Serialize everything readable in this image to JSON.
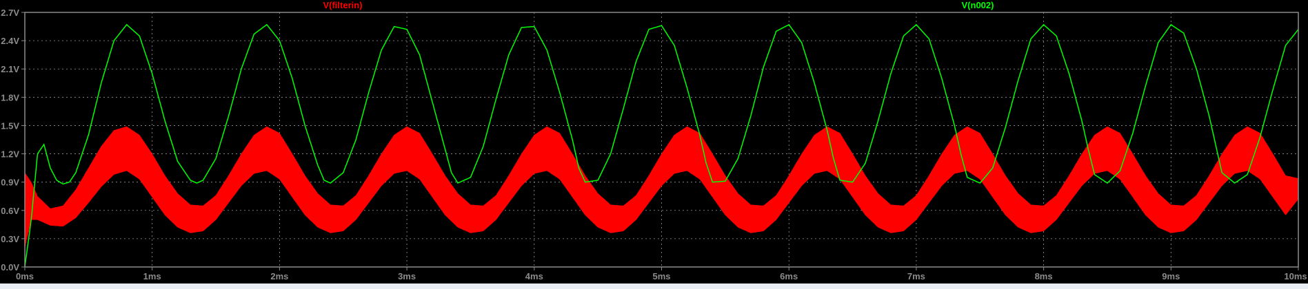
{
  "window": {
    "background": "#000000",
    "axis_color": "#8c8c8c",
    "grid_color": "#9a9a9a",
    "tick_label_color": "#8c8c8c"
  },
  "chart_data": {
    "type": "line",
    "title": "",
    "xlabel": "",
    "ylabel": "",
    "xlim": [
      0,
      10
    ],
    "ylim": [
      0,
      2.7
    ],
    "grid": true,
    "x_ticks": [
      0,
      1,
      2,
      3,
      4,
      5,
      6,
      7,
      8,
      9,
      10
    ],
    "x_tick_labels": [
      "0ms",
      "1ms",
      "2ms",
      "3ms",
      "4ms",
      "5ms",
      "6ms",
      "7ms",
      "8ms",
      "9ms",
      "10ms"
    ],
    "y_ticks": [
      0,
      0.3,
      0.6,
      0.9,
      1.2,
      1.5,
      1.8,
      2.1,
      2.4,
      2.7
    ],
    "y_tick_labels": [
      "0.0V",
      "0.3V",
      "0.6V",
      "0.9V",
      "1.2V",
      "1.5V",
      "1.8V",
      "2.1V",
      "2.4V",
      "2.7V"
    ],
    "series": [
      {
        "name": "V(filterin)",
        "color": "#ff0000",
        "style": "dense-ripple-band",
        "x": [
          0,
          0.05,
          0.1,
          0.2,
          0.3,
          0.4,
          0.5,
          0.6,
          0.7,
          0.8,
          0.9,
          1.0,
          1.1,
          1.2,
          1.3,
          1.4,
          1.5,
          1.6,
          1.7,
          1.8,
          1.9,
          2.0,
          2.1,
          2.2,
          2.3,
          2.4,
          2.5,
          2.6,
          2.7,
          2.8,
          2.9,
          3.0,
          3.1,
          3.2,
          3.3,
          3.4,
          3.5,
          3.6,
          3.7,
          3.8,
          3.9,
          4.0,
          4.1,
          4.2,
          4.3,
          4.4,
          4.5,
          4.6,
          4.7,
          4.8,
          4.9,
          5.0,
          5.1,
          5.2,
          5.3,
          5.4,
          5.5,
          5.6,
          5.7,
          5.8,
          5.9,
          6.0,
          6.1,
          6.2,
          6.3,
          6.4,
          6.5,
          6.6,
          6.7,
          6.8,
          6.9,
          7.0,
          7.1,
          7.2,
          7.3,
          7.4,
          7.5,
          7.6,
          7.7,
          7.8,
          7.9,
          8.0,
          8.1,
          8.2,
          8.3,
          8.4,
          8.5,
          8.6,
          8.7,
          8.8,
          8.9,
          9.0,
          9.1,
          9.2,
          9.3,
          9.4,
          9.5,
          9.6,
          9.7,
          9.8,
          9.9,
          10.0
        ],
        "upper": [
          1.0,
          0.9,
          0.75,
          0.62,
          0.65,
          0.82,
          1.05,
          1.28,
          1.45,
          1.49,
          1.4,
          1.2,
          0.97,
          0.78,
          0.66,
          0.65,
          0.76,
          0.97,
          1.2,
          1.4,
          1.49,
          1.42,
          1.2,
          0.97,
          0.78,
          0.66,
          0.65,
          0.76,
          0.97,
          1.2,
          1.4,
          1.49,
          1.42,
          1.2,
          0.97,
          0.78,
          0.66,
          0.65,
          0.76,
          0.97,
          1.2,
          1.4,
          1.49,
          1.42,
          1.2,
          0.97,
          0.78,
          0.66,
          0.65,
          0.76,
          0.97,
          1.2,
          1.4,
          1.49,
          1.42,
          1.2,
          0.97,
          0.78,
          0.66,
          0.65,
          0.76,
          0.97,
          1.2,
          1.4,
          1.49,
          1.42,
          1.2,
          0.97,
          0.78,
          0.66,
          0.65,
          0.76,
          0.97,
          1.2,
          1.4,
          1.49,
          1.42,
          1.2,
          0.97,
          0.78,
          0.66,
          0.65,
          0.76,
          0.97,
          1.2,
          1.4,
          1.49,
          1.42,
          1.2,
          0.97,
          0.78,
          0.66,
          0.65,
          0.76,
          0.97,
          1.2,
          1.4,
          1.49,
          1.42,
          1.2,
          0.97,
          0.94
        ],
        "lower": [
          0.2,
          0.5,
          0.5,
          0.44,
          0.43,
          0.52,
          0.68,
          0.85,
          0.98,
          1.02,
          0.93,
          0.74,
          0.55,
          0.42,
          0.36,
          0.38,
          0.5,
          0.68,
          0.86,
          0.99,
          1.02,
          0.93,
          0.74,
          0.55,
          0.42,
          0.36,
          0.38,
          0.5,
          0.68,
          0.86,
          0.99,
          1.02,
          0.93,
          0.74,
          0.55,
          0.42,
          0.36,
          0.38,
          0.5,
          0.68,
          0.86,
          0.99,
          1.02,
          0.93,
          0.74,
          0.55,
          0.42,
          0.36,
          0.38,
          0.5,
          0.68,
          0.86,
          0.99,
          1.02,
          0.93,
          0.74,
          0.55,
          0.42,
          0.36,
          0.38,
          0.5,
          0.68,
          0.86,
          0.99,
          1.02,
          0.93,
          0.74,
          0.55,
          0.42,
          0.36,
          0.38,
          0.5,
          0.68,
          0.86,
          0.99,
          1.02,
          0.93,
          0.74,
          0.55,
          0.42,
          0.36,
          0.38,
          0.5,
          0.68,
          0.86,
          0.99,
          1.02,
          0.93,
          0.74,
          0.55,
          0.42,
          0.36,
          0.38,
          0.5,
          0.68,
          0.86,
          0.99,
          1.02,
          0.93,
          0.74,
          0.55,
          0.72
        ]
      },
      {
        "name": "V(n002)",
        "color": "#00ff00",
        "style": "line",
        "x": [
          0,
          0.05,
          0.1,
          0.15,
          0.2,
          0.25,
          0.3,
          0.35,
          0.4,
          0.5,
          0.6,
          0.7,
          0.8,
          0.9,
          1.0,
          1.1,
          1.2,
          1.3,
          1.35,
          1.4,
          1.5,
          1.6,
          1.7,
          1.8,
          1.9,
          2.0,
          2.1,
          2.2,
          2.3,
          2.35,
          2.4,
          2.5,
          2.6,
          2.7,
          2.8,
          2.9,
          3.0,
          3.1,
          3.2,
          3.3,
          3.35,
          3.4,
          3.5,
          3.6,
          3.7,
          3.8,
          3.9,
          4.0,
          4.1,
          4.2,
          4.3,
          4.35,
          4.4,
          4.5,
          4.6,
          4.7,
          4.8,
          4.9,
          5.0,
          5.1,
          5.2,
          5.3,
          5.35,
          5.4,
          5.5,
          5.6,
          5.7,
          5.8,
          5.9,
          6.0,
          6.1,
          6.2,
          6.3,
          6.35,
          6.4,
          6.5,
          6.6,
          6.7,
          6.8,
          6.9,
          7.0,
          7.1,
          7.2,
          7.3,
          7.35,
          7.4,
          7.5,
          7.6,
          7.7,
          7.8,
          7.9,
          8.0,
          8.1,
          8.2,
          8.3,
          8.35,
          8.4,
          8.5,
          8.6,
          8.7,
          8.8,
          8.9,
          9.0,
          9.1,
          9.2,
          9.3,
          9.35,
          9.4,
          9.5,
          9.6,
          9.7,
          9.8,
          9.9,
          10.0
        ],
        "y": [
          0.0,
          0.5,
          1.2,
          1.3,
          1.05,
          0.92,
          0.88,
          0.9,
          1.0,
          1.4,
          1.95,
          2.4,
          2.57,
          2.45,
          2.05,
          1.55,
          1.12,
          0.92,
          0.89,
          0.92,
          1.15,
          1.6,
          2.1,
          2.47,
          2.57,
          2.4,
          2.0,
          1.5,
          1.08,
          0.92,
          0.89,
          1.0,
          1.35,
          1.85,
          2.3,
          2.55,
          2.52,
          2.25,
          1.75,
          1.25,
          1.0,
          0.89,
          0.95,
          1.28,
          1.78,
          2.25,
          2.54,
          2.55,
          2.3,
          1.85,
          1.35,
          1.05,
          0.9,
          0.92,
          1.2,
          1.68,
          2.18,
          2.52,
          2.56,
          2.35,
          1.9,
          1.4,
          1.1,
          0.9,
          0.91,
          1.15,
          1.6,
          2.12,
          2.5,
          2.57,
          2.38,
          1.95,
          1.45,
          1.15,
          0.92,
          0.9,
          1.1,
          1.55,
          2.05,
          2.45,
          2.57,
          2.42,
          2.0,
          1.5,
          1.2,
          0.95,
          0.89,
          1.05,
          1.48,
          1.98,
          2.42,
          2.57,
          2.45,
          2.05,
          1.55,
          1.25,
          0.98,
          0.89,
          1.02,
          1.42,
          1.92,
          2.38,
          2.57,
          2.48,
          2.1,
          1.6,
          1.3,
          1.0,
          0.89,
          0.98,
          1.38,
          1.88,
          2.35,
          2.52
        ]
      }
    ]
  }
}
